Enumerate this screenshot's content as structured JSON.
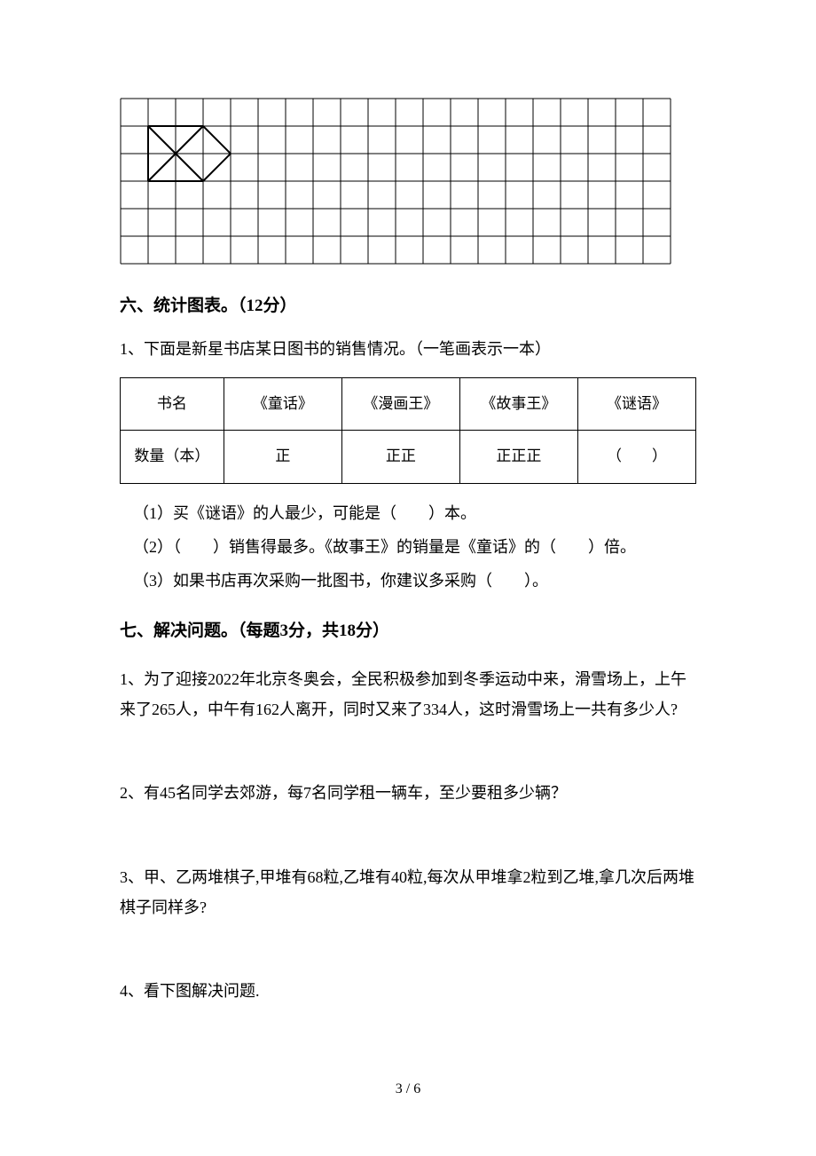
{
  "grid": {
    "cols": 20,
    "rows": 6,
    "cell_size": 31,
    "line_color": "#000000",
    "line_width": 1,
    "shape": {
      "type": "triangles",
      "points_outer": [
        [
          1,
          1
        ],
        [
          3,
          1
        ],
        [
          4,
          2
        ],
        [
          3,
          3
        ],
        [
          1,
          3
        ]
      ],
      "vertices_tri1": [
        [
          1,
          1
        ],
        [
          3,
          3
        ],
        [
          1,
          3
        ]
      ],
      "vertices_tri2": [
        [
          1,
          1
        ],
        [
          3,
          1
        ],
        [
          3,
          3
        ]
      ],
      "vertices_tri3": [
        [
          3,
          1
        ],
        [
          4,
          2
        ],
        [
          3,
          3
        ]
      ],
      "lines": [
        [
          [
            1,
            1
          ],
          [
            3,
            1
          ]
        ],
        [
          [
            1,
            1
          ],
          [
            1,
            3
          ]
        ],
        [
          [
            1,
            3
          ],
          [
            3,
            3
          ]
        ],
        [
          [
            1,
            1
          ],
          [
            3,
            3
          ]
        ],
        [
          [
            1,
            3
          ],
          [
            3,
            1
          ]
        ],
        [
          [
            3,
            1
          ],
          [
            4,
            2
          ]
        ],
        [
          [
            3,
            3
          ],
          [
            4,
            2
          ]
        ]
      ],
      "stroke_color": "#000000",
      "stroke_width": 2
    }
  },
  "section6": {
    "heading": "六、统计图表。（12分）",
    "intro": "1、下面是新星书店某日图书的销售情况。（一笔画表示一本）",
    "table": {
      "headers": [
        "书名",
        "《童话》",
        "《漫画王》",
        "《故事王》",
        "《谜语》"
      ],
      "row2_label": "数量（本）",
      "row2_data": [
        "正",
        "正正",
        "正正正",
        "（　　）"
      ]
    },
    "questions": [
      "（1）买《谜语》的人最少，可能是（　　）本。",
      "（2）（　　）销售得最多。《故事王》的销量是《童话》的（　　）倍。",
      "（3）如果书店再次采购一批图书，你建议多采购（　　）。"
    ]
  },
  "section7": {
    "heading": "七、解决问题。（每题3分，共18分）",
    "problems": [
      "1、为了迎接2022年北京冬奥会，全民积极参加到冬季运动中来，滑雪场上，上午来了265人，中午有162人离开，同时又来了334人，这时滑雪场上一共有多少人?",
      "2、有45名同学去郊游，每7名同学租一辆车，至少要租多少辆？",
      "3、甲、乙两堆棋子,甲堆有68粒,乙堆有40粒,每次从甲堆拿2粒到乙堆,拿几次后两堆棋子同样多?",
      "4、看下图解决问题."
    ]
  },
  "footer": {
    "page": "3 / 6"
  },
  "colors": {
    "text": "#000000",
    "background": "#ffffff",
    "border": "#000000"
  }
}
